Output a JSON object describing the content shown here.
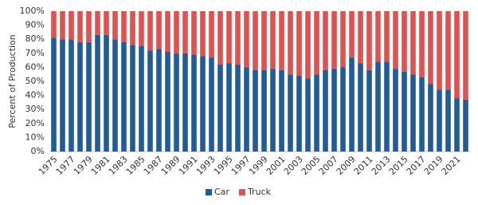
{
  "chart_data": {
    "type": "stacked_bar",
    "y_label": "Percent of Production",
    "categories": [
      "1975",
      null,
      "1977",
      null,
      "1979",
      null,
      "1981",
      null,
      "1983",
      null,
      "1985",
      null,
      "1987",
      null,
      "1989",
      null,
      "1991",
      null,
      "1993",
      null,
      "1995",
      null,
      "1997",
      null,
      "1999",
      null,
      "2001",
      null,
      "2003",
      null,
      "2005",
      null,
      "2007",
      null,
      "2009",
      null,
      "2011",
      null,
      "2013",
      null,
      "2015",
      null,
      "2017",
      null,
      "2019",
      null,
      "2021",
      null
    ],
    "series": [
      {
        "name": "Car",
        "color": "#1f5c99",
        "values": [
          81,
          80,
          80,
          78,
          78,
          83,
          83,
          80,
          78,
          76,
          75,
          72,
          73,
          71,
          70,
          70,
          69,
          68,
          67,
          62,
          63,
          62,
          60,
          58,
          58,
          59,
          58,
          55,
          54,
          52,
          55,
          58,
          59,
          60,
          67,
          63,
          58,
          64,
          64,
          59,
          57,
          55,
          53,
          48,
          44,
          44,
          38,
          37
        ]
      },
      {
        "name": "Truck",
        "color": "#e0514f",
        "values": [
          19,
          20,
          20,
          22,
          22,
          17,
          17,
          20,
          22,
          24,
          25,
          28,
          27,
          29,
          30,
          30,
          31,
          32,
          33,
          38,
          37,
          38,
          40,
          42,
          42,
          41,
          42,
          45,
          46,
          48,
          45,
          42,
          41,
          40,
          33,
          37,
          42,
          36,
          36,
          41,
          43,
          45,
          47,
          52,
          56,
          56,
          62,
          63
        ]
      }
    ],
    "ylim": [
      0,
      100
    ],
    "yticks": [
      {
        "value": 0,
        "label": "0%"
      },
      {
        "value": 10,
        "label": "10%"
      },
      {
        "value": 20,
        "label": "20%"
      },
      {
        "value": 30,
        "label": "30%"
      },
      {
        "value": 40,
        "label": "40%"
      },
      {
        "value": 50,
        "label": "50%"
      },
      {
        "value": 60,
        "label": "60%"
      },
      {
        "value": 70,
        "label": "70%"
      },
      {
        "value": 80,
        "label": "80%"
      },
      {
        "value": 90,
        "label": "90%"
      },
      {
        "value": 100,
        "label": "100%"
      }
    ],
    "legend": "bottom"
  }
}
